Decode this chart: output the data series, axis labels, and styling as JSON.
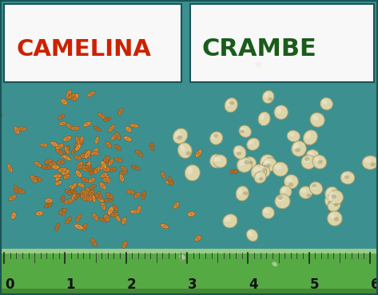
{
  "bg_color": "#3d9090",
  "teal_color": "#2e8080",
  "label_left": "CAMELINA",
  "label_right": "CRAMBE",
  "label_color_left": "#cc2200",
  "label_color_right": "#1a5c1a",
  "label_bg": "#f8f8f8",
  "ruler_bg": "#55aa44",
  "ruler_bg2": "#448833",
  "ruler_text_color": "#111111",
  "ruler_numbers": [
    "0",
    "1",
    "2",
    "3",
    "4",
    "5",
    "6"
  ],
  "camelina_seed_color": "#c88030",
  "camelina_seed_dark": "#7a4010",
  "crambe_seed_color": "#ddd5aa",
  "crambe_seed_dark": "#aaa070",
  "border_color": "#1a5555",
  "figsize": [
    4.73,
    3.7
  ],
  "dpi": 100
}
